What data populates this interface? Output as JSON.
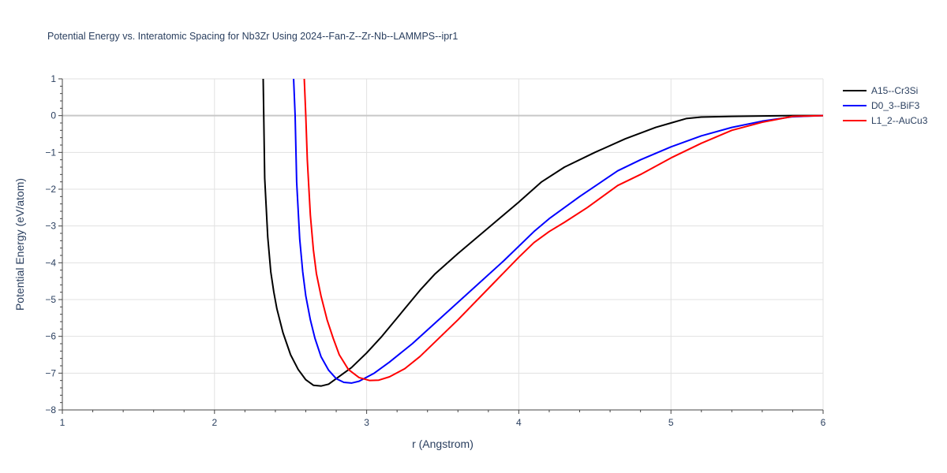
{
  "chart_data": {
    "type": "line",
    "title": "Potential Energy vs. Interatomic Spacing for Nb3Zr Using 2024--Fan-Z--Zr-Nb--LAMMPS--ipr1",
    "xlabel": "r (Angstrom)",
    "ylabel": "Potential Energy (eV/atom)",
    "xlim": [
      1,
      6
    ],
    "ylim": [
      -8,
      1
    ],
    "xticks": [
      1,
      2,
      3,
      4,
      5,
      6
    ],
    "xtick_labels": [
      "1",
      "2",
      "3",
      "4",
      "5",
      "6"
    ],
    "yticks": [
      1,
      0,
      -1,
      -2,
      -3,
      -4,
      -5,
      -6,
      -7,
      -8
    ],
    "ytick_labels": [
      "1",
      "0",
      "−1",
      "−2",
      "−3",
      "−4",
      "−5",
      "−6",
      "−7",
      "−8"
    ],
    "grid": true,
    "legend_position": "top-right",
    "series": [
      {
        "name": "A15--Cr3Si",
        "color": "#000000",
        "x": [
          2.32,
          2.33,
          2.35,
          2.37,
          2.39,
          2.41,
          2.45,
          2.5,
          2.55,
          2.6,
          2.65,
          2.7,
          2.75,
          2.8,
          2.9,
          3.0,
          3.1,
          3.2,
          3.3,
          3.35,
          3.45,
          3.6,
          3.8,
          4.0,
          4.15,
          4.3,
          4.5,
          4.7,
          4.9,
          5.0,
          5.1,
          5.2,
          5.4,
          5.6,
          5.8,
          6.0
        ],
        "y": [
          1.0,
          -1.7,
          -3.3,
          -4.25,
          -4.8,
          -5.25,
          -5.9,
          -6.5,
          -6.9,
          -7.18,
          -7.33,
          -7.35,
          -7.3,
          -7.15,
          -6.85,
          -6.45,
          -6.0,
          -5.5,
          -5.0,
          -4.75,
          -4.3,
          -3.75,
          -3.05,
          -2.35,
          -1.8,
          -1.4,
          -1.0,
          -0.63,
          -0.32,
          -0.2,
          -0.08,
          -0.04,
          -0.02,
          -0.01,
          0.0,
          0.0
        ]
      },
      {
        "name": "D0_3--BiF3",
        "color": "#0000ff",
        "x": [
          2.52,
          2.53,
          2.54,
          2.56,
          2.58,
          2.6,
          2.63,
          2.66,
          2.7,
          2.75,
          2.8,
          2.85,
          2.9,
          2.95,
          3.05,
          3.15,
          3.3,
          3.5,
          3.7,
          3.9,
          4.1,
          4.2,
          4.4,
          4.65,
          4.8,
          5.0,
          5.2,
          5.4,
          5.6,
          5.8,
          6.0
        ],
        "y": [
          1.0,
          0.0,
          -1.8,
          -3.35,
          -4.25,
          -4.9,
          -5.55,
          -6.05,
          -6.55,
          -6.92,
          -7.15,
          -7.25,
          -7.27,
          -7.22,
          -7.0,
          -6.7,
          -6.2,
          -5.45,
          -4.7,
          -3.95,
          -3.15,
          -2.8,
          -2.2,
          -1.5,
          -1.2,
          -0.85,
          -0.55,
          -0.32,
          -0.15,
          -0.03,
          0.0
        ]
      },
      {
        "name": "L1_2--AuCu3",
        "color": "#ff0000",
        "x": [
          2.59,
          2.6,
          2.61,
          2.63,
          2.65,
          2.67,
          2.7,
          2.74,
          2.78,
          2.82,
          2.88,
          2.95,
          3.02,
          3.08,
          3.15,
          3.25,
          3.35,
          3.45,
          3.6,
          3.8,
          4.0,
          4.1,
          4.2,
          4.3,
          4.45,
          4.65,
          4.8,
          5.0,
          5.2,
          5.4,
          5.6,
          5.8,
          6.0
        ],
        "y": [
          1.0,
          0.0,
          -1.2,
          -2.7,
          -3.65,
          -4.3,
          -4.9,
          -5.55,
          -6.05,
          -6.5,
          -6.9,
          -7.12,
          -7.2,
          -7.19,
          -7.1,
          -6.88,
          -6.55,
          -6.15,
          -5.55,
          -4.7,
          -3.85,
          -3.45,
          -3.15,
          -2.9,
          -2.5,
          -1.9,
          -1.6,
          -1.15,
          -0.75,
          -0.4,
          -0.18,
          -0.02,
          0.0
        ]
      }
    ]
  }
}
